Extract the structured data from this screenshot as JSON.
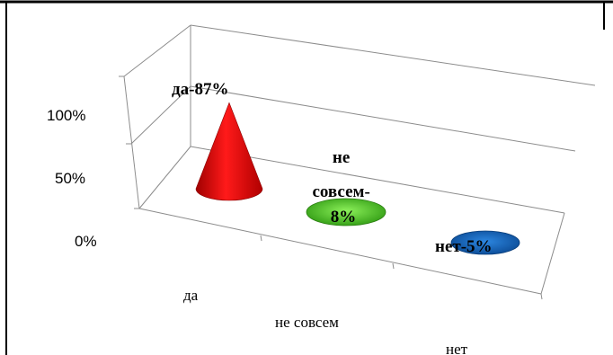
{
  "chart_data": {
    "type": "bar",
    "shape": "cone-3d",
    "categories": [
      "да",
      "не совсем",
      "нет"
    ],
    "values": [
      87,
      8,
      5
    ],
    "data_labels": [
      [
        "да-87%"
      ],
      [
        "не",
        "совсем-",
        "8%"
      ],
      [
        "нет-5%"
      ]
    ],
    "y_ticks": [
      "0%",
      "50%",
      "100%"
    ],
    "ylim": [
      0,
      100
    ],
    "grid": true,
    "colors": [
      "#ff0000",
      "#44c21a",
      "#1465b8"
    ]
  }
}
